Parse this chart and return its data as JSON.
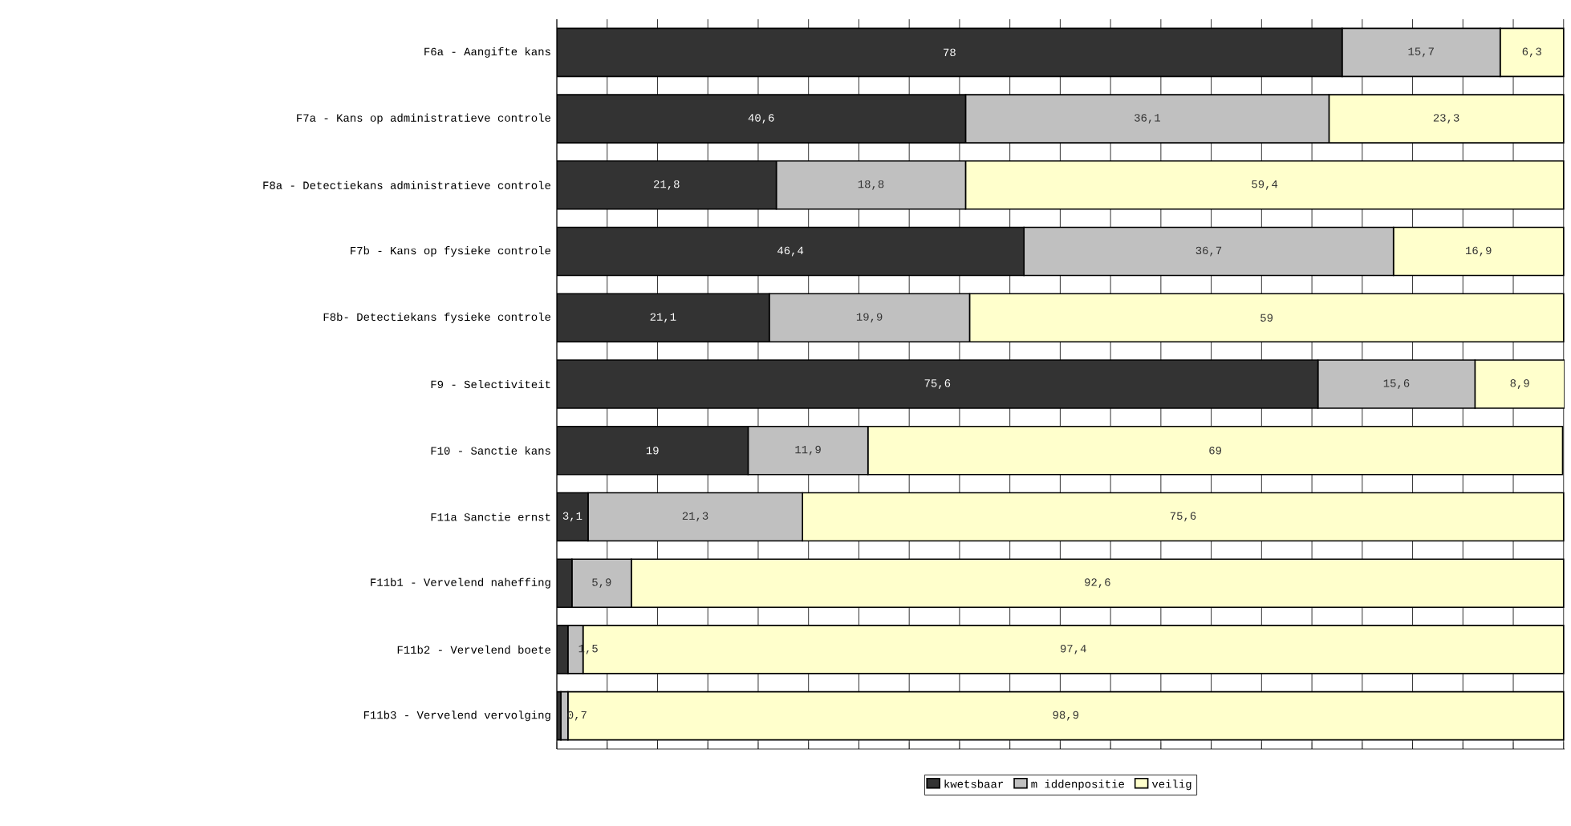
{
  "chart_data": {
    "type": "bar",
    "orientation": "horizontal",
    "stacked": true,
    "categories": [
      "F6a - Aangifte kans",
      "F7a - Kans op administratieve controle",
      "F8a - Detectiekans administratieve controle",
      "F7b - Kans op fysieke controle",
      "F8b- Detectiekans fysieke controle",
      "F9 - Selectiviteit",
      "F10 - Sanctie kans",
      "F11a Sanctie ernst",
      "F11b1 - Vervelend naheffing",
      "F11b2 - Vervelend boete",
      "F11b3 - Vervelend vervolging"
    ],
    "series": [
      {
        "name": "kwetsbaar",
        "color": "#333333",
        "values": [
          78,
          40.6,
          21.8,
          46.4,
          21.1,
          75.6,
          19,
          3.1,
          1.5,
          1.1,
          0.4
        ],
        "value_labels": [
          "78",
          "40,6",
          "21,8",
          "46,4",
          "21,1",
          "75,6",
          "19",
          "3,1",
          null,
          null,
          null
        ]
      },
      {
        "name": "m iddenpositie",
        "color": "#c0c0c0",
        "values": [
          15.7,
          36.1,
          18.8,
          36.7,
          19.9,
          15.6,
          11.9,
          21.3,
          5.9,
          1.5,
          0.7
        ],
        "value_labels": [
          "15,7",
          "36,1",
          "18,8",
          "36,7",
          "19,9",
          "15,6",
          "11,9",
          "21,3",
          "5,9",
          "1,5",
          "0,7"
        ]
      },
      {
        "name": "veilig",
        "color": "#ffffcc",
        "values": [
          6.3,
          23.3,
          59.4,
          16.9,
          59,
          8.9,
          69,
          75.6,
          92.6,
          97.4,
          98.9
        ],
        "value_labels": [
          "6,3",
          "23,3",
          "59,4",
          "16,9",
          "59",
          "8,9",
          "69",
          "75,6",
          "92,6",
          "97,4",
          "98,9"
        ]
      }
    ],
    "tick_labels": "y",
    "grid": "x",
    "legend": "bottom"
  }
}
